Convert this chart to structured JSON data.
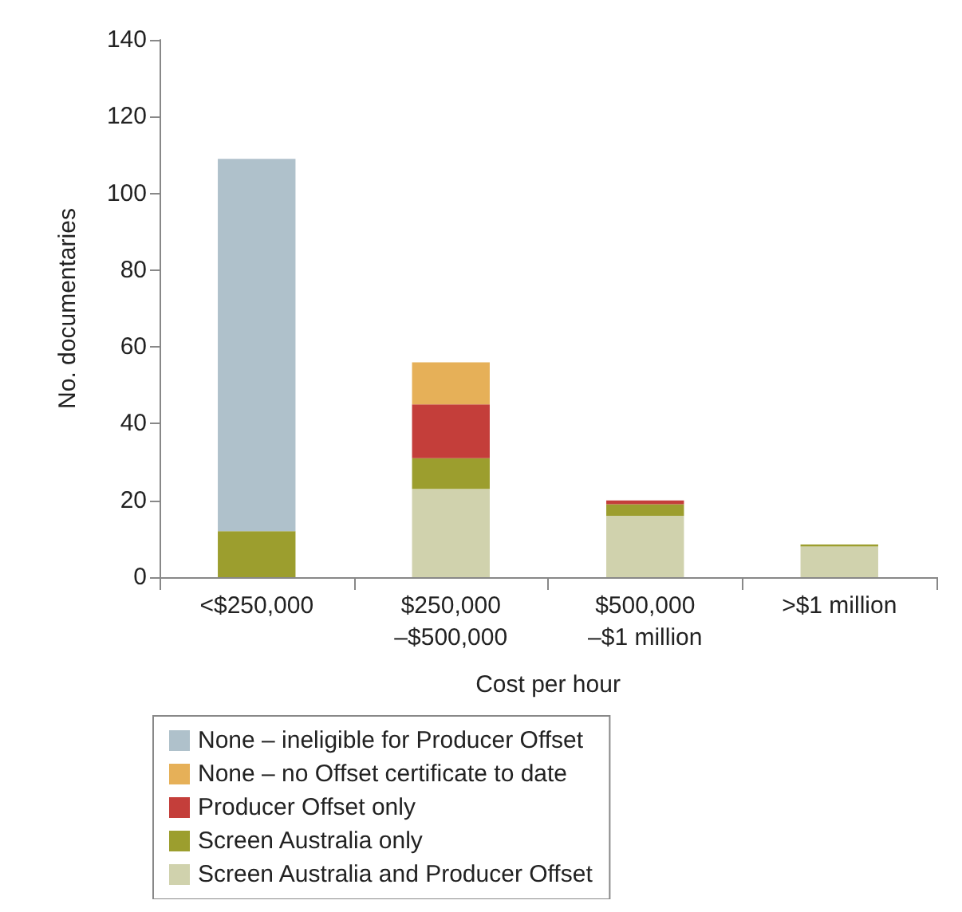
{
  "chart_data": {
    "type": "bar",
    "stacked": true,
    "xlabel": "Cost per hour",
    "ylabel": "No. documentaries",
    "categories": [
      "<$250,000",
      "$250,000\n–$500,000",
      "$500,000\n–$1 million",
      ">$1 million"
    ],
    "series": [
      {
        "name": "Screen Australia and Producer Offset",
        "color": "#d0d2ad",
        "values": [
          0,
          23,
          16,
          8
        ]
      },
      {
        "name": "Screen Australia only",
        "color": "#9c9e2e",
        "values": [
          12,
          8,
          3,
          0.5
        ]
      },
      {
        "name": "Producer Offset only",
        "color": "#c43e3a",
        "values": [
          0,
          14,
          1,
          0
        ]
      },
      {
        "name": "None – no Offset certificate to date",
        "color": "#e6b058",
        "values": [
          0,
          11,
          0,
          0
        ]
      },
      {
        "name": "None – ineligible for Producer Offset",
        "color": "#afc1cb",
        "values": [
          97,
          0,
          0,
          0
        ]
      }
    ],
    "ylim": [
      0,
      140
    ],
    "yticks": [
      0,
      20,
      40,
      60,
      80,
      100,
      120,
      140
    ],
    "grid": false,
    "legend": "bottom"
  }
}
